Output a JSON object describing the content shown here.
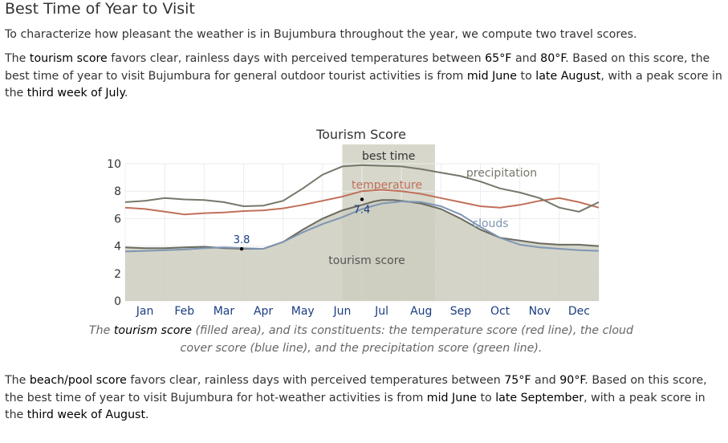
{
  "section": {
    "title": "Best Time of Year to Visit"
  },
  "intro": "To characterize how pleasant the weather is in Bujumbura throughout the year, we compute two travel scores.",
  "tourism_paragraph": {
    "p1": "The ",
    "b1": "tourism score",
    "p2": " favors clear, rainless days with perceived temperatures between ",
    "b2": "65°F",
    "p3": " and ",
    "b3": "80°F",
    "p4": ". Based on this score, the best time of year to visit Bujumbura for general outdoor tourist activities is from ",
    "b4": "mid June",
    "p5": " to ",
    "b5": "late August",
    "p6": ", with a peak score in the ",
    "b6": "third week of July",
    "p7": "."
  },
  "caption": {
    "c1": "The ",
    "c2": "tourism score",
    "c3": " (filled area), and its constituents: the temperature score (red line), the cloud cover score (blue line), and the precipitation score (green line)."
  },
  "beach_paragraph": {
    "p1": "The ",
    "b1": "beach/pool score",
    "p2": " favors clear, rainless days with perceived temperatures between ",
    "b2": "75°F",
    "p3": " and ",
    "b3": "90°F",
    "p4": ". Based on this score, the best time of year to visit Bujumbura for hot-weather activities is from ",
    "b4": "mid June",
    "p5": " to ",
    "b5": "late September",
    "p6": ", with a peak score in the ",
    "b6": "third week of August",
    "p7": "."
  },
  "chart_data": {
    "type": "area",
    "title": "Tourism Score",
    "xlabel": "",
    "ylabel": "",
    "ylim": [
      0,
      10
    ],
    "xlim": [
      0,
      12
    ],
    "grid": true,
    "yticks": [
      "0",
      "2",
      "4",
      "6",
      "8",
      "10"
    ],
    "months": [
      "Jan",
      "Feb",
      "Mar",
      "Apr",
      "May",
      "Jun",
      "Jul",
      "Aug",
      "Sep",
      "Oct",
      "Nov",
      "Dec"
    ],
    "best_time": {
      "label": "best time",
      "start": 5.5,
      "end": 7.85
    },
    "series": [
      {
        "name": "tourism score",
        "role": "area",
        "color": "#cdcdbf",
        "edge_color": "#6a6a60",
        "x": [
          0,
          0.5,
          1,
          1.5,
          2,
          2.5,
          3,
          3.5,
          4,
          4.5,
          5,
          5.5,
          6,
          6.3,
          6.5,
          6.8,
          7,
          7.5,
          8,
          8.5,
          9,
          9.5,
          10,
          10.5,
          11,
          11.5,
          12
        ],
        "values": [
          3.9,
          3.85,
          3.85,
          3.9,
          3.95,
          3.85,
          3.8,
          3.8,
          4.3,
          5.2,
          6.0,
          6.6,
          7.0,
          7.25,
          7.35,
          7.35,
          7.3,
          7.1,
          6.7,
          6.0,
          5.2,
          4.6,
          4.4,
          4.2,
          4.1,
          4.1,
          4.0
        ]
      },
      {
        "name": "temperature",
        "role": "line",
        "color": "#c0705a",
        "x": [
          0,
          0.5,
          1,
          1.5,
          2,
          2.5,
          3,
          3.5,
          4,
          4.5,
          5,
          5.5,
          6,
          6.5,
          7,
          7.5,
          8,
          8.5,
          9,
          9.5,
          10,
          10.5,
          11,
          11.5,
          12
        ],
        "values": [
          6.8,
          6.7,
          6.5,
          6.3,
          6.4,
          6.45,
          6.55,
          6.6,
          6.75,
          7.0,
          7.3,
          7.6,
          8.0,
          8.1,
          8.0,
          7.8,
          7.5,
          7.2,
          6.9,
          6.8,
          7.0,
          7.3,
          7.5,
          7.2,
          6.8
        ]
      },
      {
        "name": "clouds",
        "role": "line",
        "color": "#7f96b2",
        "x": [
          0,
          0.5,
          1,
          1.5,
          2,
          2.5,
          3,
          3.5,
          4,
          4.5,
          5,
          5.5,
          6,
          6.5,
          7,
          7.5,
          8,
          8.5,
          9,
          9.5,
          10,
          10.5,
          11,
          11.5,
          12
        ],
        "values": [
          3.6,
          3.65,
          3.7,
          3.75,
          3.85,
          3.9,
          3.85,
          3.8,
          4.3,
          5.0,
          5.6,
          6.1,
          6.7,
          7.1,
          7.25,
          7.2,
          6.9,
          6.3,
          5.4,
          4.6,
          4.1,
          3.9,
          3.8,
          3.7,
          3.65
        ]
      },
      {
        "name": "precipitation",
        "role": "line",
        "color": "#74786a",
        "x": [
          0,
          0.5,
          1,
          1.5,
          2,
          2.5,
          3,
          3.5,
          4,
          4.5,
          5,
          5.5,
          6,
          6.5,
          7,
          7.5,
          8,
          8.5,
          9,
          9.5,
          10,
          10.5,
          11,
          11.5,
          12
        ],
        "values": [
          7.2,
          7.3,
          7.5,
          7.4,
          7.35,
          7.2,
          6.9,
          6.95,
          7.3,
          8.2,
          9.2,
          9.8,
          9.9,
          9.85,
          9.8,
          9.6,
          9.35,
          9.1,
          8.7,
          8.2,
          7.9,
          7.5,
          6.8,
          6.5,
          7.2
        ]
      }
    ],
    "annotations": [
      {
        "label": "3.8",
        "x": 2.95,
        "y": 3.8
      },
      {
        "label": "7.4",
        "x": 6.0,
        "y": 7.4
      }
    ]
  }
}
